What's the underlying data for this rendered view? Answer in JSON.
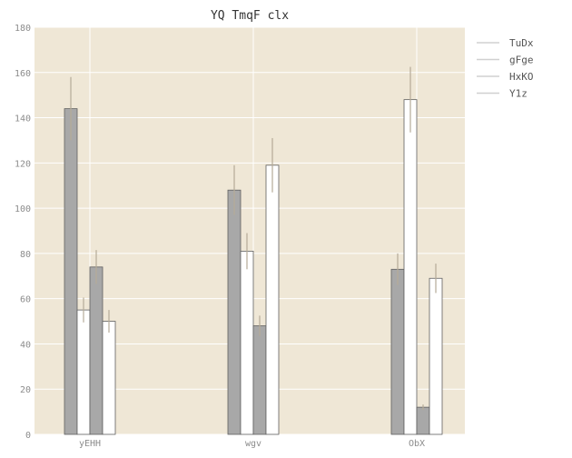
{
  "chart_data": {
    "type": "bar",
    "title": "YQ TmqF  clx",
    "xlabel": "",
    "ylabel": "",
    "categories": [
      "yEHH",
      "wgv",
      "ObX"
    ],
    "ylim": [
      0,
      180
    ],
    "yticks": [
      0,
      20,
      40,
      60,
      80,
      100,
      120,
      140,
      160,
      180
    ],
    "grid": true,
    "legend_position": "outside-right",
    "colors": {
      "plot_background": "#efe7d6",
      "grid": "#ffffff",
      "axis_text": "#8c8c8c"
    },
    "series": [
      {
        "name": "TuDx",
        "color": "#a8a8a8",
        "values": [
          144,
          108,
          73
        ],
        "errors": [
          14,
          11,
          7
        ]
      },
      {
        "name": "gFge",
        "color": "#ffffff",
        "values": [
          55,
          81,
          148
        ],
        "errors": [
          5.5,
          8,
          14.5
        ]
      },
      {
        "name": "HxKO",
        "color": "#a8a8a8",
        "values": [
          74,
          48,
          12
        ],
        "errors": [
          7.5,
          4.5,
          1.2
        ]
      },
      {
        "name": "Y1z",
        "color": "#ffffff",
        "values": [
          50,
          119,
          69
        ],
        "errors": [
          5,
          12,
          6.5
        ]
      }
    ]
  }
}
